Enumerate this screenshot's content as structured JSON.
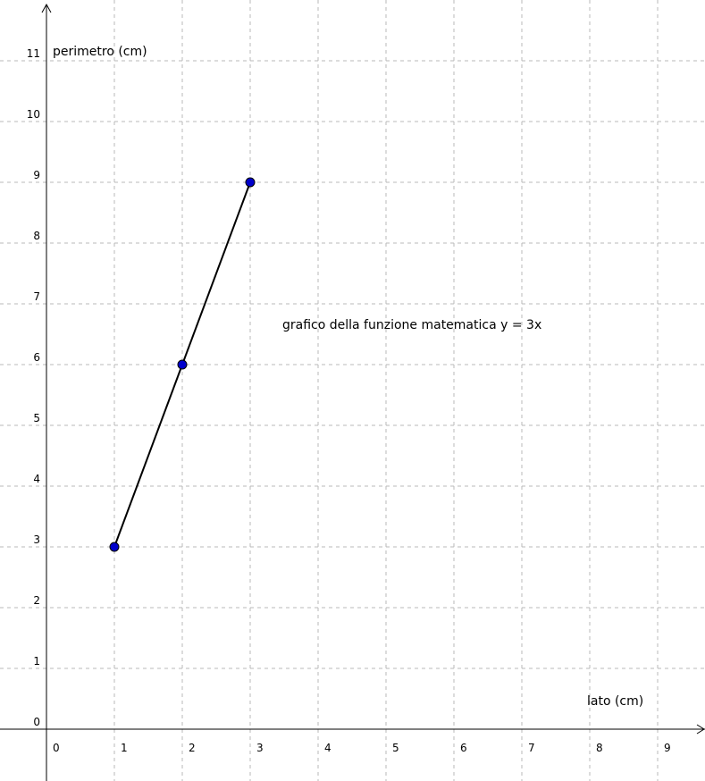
{
  "chart_data": {
    "type": "line",
    "xlabel": "lato (cm)",
    "ylabel": "perimetro (cm)",
    "xlim": [
      0,
      9
    ],
    "ylim": [
      0,
      11
    ],
    "x_ticks": [
      "0",
      "1",
      "2",
      "3",
      "4",
      "5",
      "6",
      "7",
      "8",
      "9"
    ],
    "y_ticks": [
      "0",
      "1",
      "2",
      "3",
      "4",
      "5",
      "6",
      "7",
      "8",
      "9",
      "10",
      "11"
    ],
    "grid": true,
    "series": [
      {
        "x": [
          1,
          2,
          3
        ],
        "y": [
          3,
          6,
          9
        ],
        "color": "#000000",
        "point_color": "#0000cc"
      }
    ],
    "annotations": [
      {
        "text": "grafico della funzione matematica y = 3x",
        "x": 3.5,
        "y": 6.6
      }
    ]
  }
}
